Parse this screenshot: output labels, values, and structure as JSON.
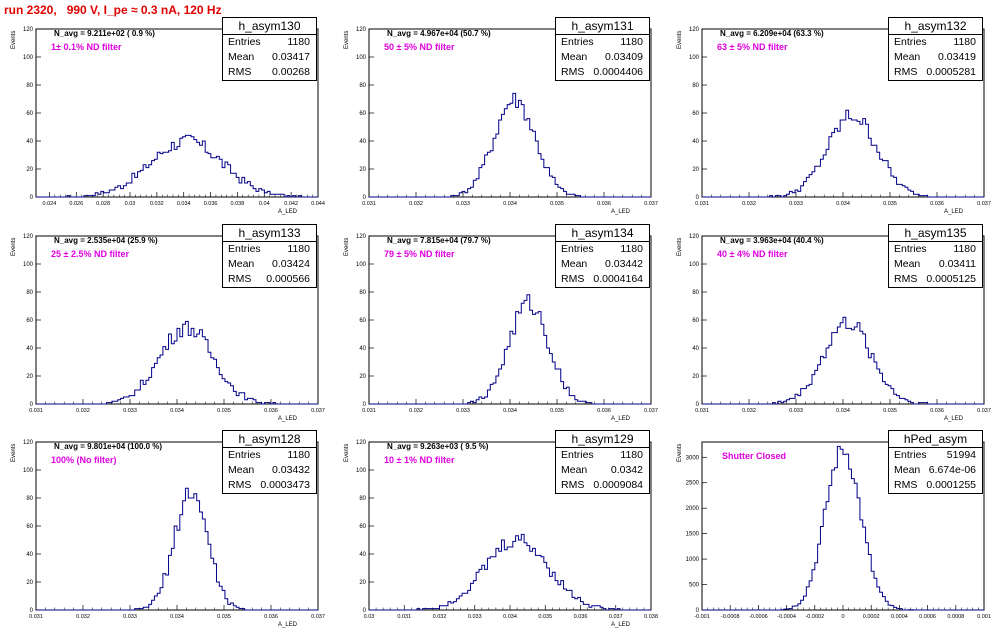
{
  "page_title": "run 2320,   990 V, I_pe ≈ 0.3 nA, 120 Hz",
  "colors": {
    "histogram": "#000088",
    "filter_text": "#e000e0",
    "title": "#e00000"
  },
  "chart_data": [
    {
      "type": "histogram",
      "name": "h_asym130",
      "stats": {
        "entries_label": "Entries",
        "entries": "1180",
        "mean_label": "Mean",
        "mean": "0.03417",
        "rms_label": "RMS",
        "rms": "0.00268"
      },
      "n_avg": "N_avg = 9.211e+02 ( 0.9 %)",
      "filter": "1± 0.1% ND filter",
      "xlim": [
        0.023,
        0.044
      ],
      "ylim": [
        0,
        120
      ],
      "xticks": [
        0.024,
        0.026,
        0.028,
        0.03,
        0.032,
        0.034,
        0.036,
        0.038,
        0.04,
        0.042,
        0.044
      ],
      "xtick_labels": [
        "0.024",
        "0.026",
        "0.028",
        "0.03",
        "0.032",
        "0.034",
        "0.036",
        "0.038",
        "0.04",
        "0.042",
        "0.044"
      ],
      "yticks": [
        0,
        20,
        40,
        60,
        80,
        100,
        120
      ],
      "ylabel": "Events",
      "xlabel": "A_LED",
      "peak_x": 0.0342,
      "peak_y": 40,
      "sigma": 0.0027
    },
    {
      "type": "histogram",
      "name": "h_asym131",
      "stats": {
        "entries_label": "Entries",
        "entries": "1180",
        "mean_label": "Mean",
        "mean": "0.03409",
        "rms_label": "RMS",
        "rms": "0.0004406"
      },
      "n_avg": "N_avg = 4.967e+04 (50.7 %)",
      "filter": "50 ± 5% ND filter",
      "xlim": [
        0.031,
        0.037
      ],
      "ylim": [
        0,
        120
      ],
      "xticks": [
        0.031,
        0.032,
        0.033,
        0.034,
        0.035,
        0.036,
        0.037
      ],
      "xtick_labels": [
        "0.031",
        "0.032",
        "0.033",
        "0.034",
        "0.035",
        "0.036",
        "0.037"
      ],
      "yticks": [
        0,
        20,
        40,
        60,
        80,
        100,
        120
      ],
      "ylabel": "Events",
      "xlabel": "A_LED",
      "peak_x": 0.0341,
      "peak_y": 70,
      "sigma": 0.00044
    },
    {
      "type": "histogram",
      "name": "h_asym132",
      "stats": {
        "entries_label": "Entries",
        "entries": "1180",
        "mean_label": "Mean",
        "mean": "0.03419",
        "rms_label": "RMS",
        "rms": "0.0005281"
      },
      "n_avg": "N_avg = 6.209e+04 (63.3 %)",
      "filter": "63 ± 5% ND filter",
      "xlim": [
        0.031,
        0.037
      ],
      "ylim": [
        0,
        120
      ],
      "xticks": [
        0.031,
        0.032,
        0.033,
        0.034,
        0.035,
        0.036,
        0.037
      ],
      "xtick_labels": [
        "0.031",
        "0.032",
        "0.033",
        "0.034",
        "0.035",
        "0.036",
        "0.037"
      ],
      "yticks": [
        0,
        20,
        40,
        60,
        80,
        100,
        120
      ],
      "ylabel": "Events",
      "xlabel": "A_LED",
      "peak_x": 0.0342,
      "peak_y": 58,
      "sigma": 0.00053
    },
    {
      "type": "histogram",
      "name": "h_asym133",
      "stats": {
        "entries_label": "Entries",
        "entries": "1180",
        "mean_label": "Mean",
        "mean": "0.03424",
        "rms_label": "RMS",
        "rms": "0.000566"
      },
      "n_avg": "N_avg = 2.535e+04 (25.9 %)",
      "filter": "25 ± 2.5% ND filter",
      "xlim": [
        0.031,
        0.037
      ],
      "ylim": [
        0,
        120
      ],
      "xticks": [
        0.031,
        0.032,
        0.033,
        0.034,
        0.035,
        0.036,
        0.037
      ],
      "xtick_labels": [
        "0.031",
        "0.032",
        "0.033",
        "0.034",
        "0.035",
        "0.036",
        "0.037"
      ],
      "yticks": [
        0,
        20,
        40,
        60,
        80,
        100,
        120
      ],
      "ylabel": "Events",
      "xlabel": "A_LED",
      "peak_x": 0.0342,
      "peak_y": 55,
      "sigma": 0.00057
    },
    {
      "type": "histogram",
      "name": "h_asym134",
      "stats": {
        "entries_label": "Entries",
        "entries": "1180",
        "mean_label": "Mean",
        "mean": "0.03442",
        "rms_label": "RMS",
        "rms": "0.0004164"
      },
      "n_avg": "N_avg = 7.815e+04 (79.7 %)",
      "filter": "79 ± 5% ND filter",
      "xlim": [
        0.031,
        0.037
      ],
      "ylim": [
        0,
        120
      ],
      "xticks": [
        0.031,
        0.032,
        0.033,
        0.034,
        0.035,
        0.036,
        0.037
      ],
      "xtick_labels": [
        "0.031",
        "0.032",
        "0.033",
        "0.034",
        "0.035",
        "0.036",
        "0.037"
      ],
      "yticks": [
        0,
        20,
        40,
        60,
        80,
        100,
        120
      ],
      "ylabel": "Events",
      "xlabel": "A_LED",
      "peak_x": 0.0344,
      "peak_y": 72,
      "sigma": 0.00042
    },
    {
      "type": "histogram",
      "name": "h_asym135",
      "stats": {
        "entries_label": "Entries",
        "entries": "1180",
        "mean_label": "Mean",
        "mean": "0.03411",
        "rms_label": "RMS",
        "rms": "0.0005125"
      },
      "n_avg": "N_avg = 3.963e+04 (40.4 %)",
      "filter": "40 ± 4% ND filter",
      "xlim": [
        0.031,
        0.037
      ],
      "ylim": [
        0,
        120
      ],
      "xticks": [
        0.031,
        0.032,
        0.033,
        0.034,
        0.035,
        0.036,
        0.037
      ],
      "xtick_labels": [
        "0.031",
        "0.032",
        "0.033",
        "0.034",
        "0.035",
        "0.036",
        "0.037"
      ],
      "yticks": [
        0,
        20,
        40,
        60,
        80,
        100,
        120
      ],
      "ylabel": "Events",
      "xlabel": "A_LED",
      "peak_x": 0.0341,
      "peak_y": 58,
      "sigma": 0.00051
    },
    {
      "type": "histogram",
      "name": "h_asym128",
      "stats": {
        "entries_label": "Entries",
        "entries": "1180",
        "mean_label": "Mean",
        "mean": "0.03432",
        "rms_label": "RMS",
        "rms": "0.0003473"
      },
      "n_avg": "N_avg = 9.801e+04 (100.0 %)",
      "filter": "100% (No filter)",
      "xlim": [
        0.031,
        0.037
      ],
      "ylim": [
        0,
        120
      ],
      "xticks": [
        0.031,
        0.032,
        0.033,
        0.034,
        0.035,
        0.036,
        0.037
      ],
      "xtick_labels": [
        "0.031",
        "0.032",
        "0.033",
        "0.034",
        "0.035",
        "0.036",
        "0.037"
      ],
      "yticks": [
        0,
        20,
        40,
        60,
        80,
        100,
        120
      ],
      "ylabel": "Events",
      "xlabel": "A_LED",
      "peak_x": 0.0343,
      "peak_y": 85,
      "sigma": 0.00035
    },
    {
      "type": "histogram",
      "name": "h_asym129",
      "stats": {
        "entries_label": "Entries",
        "entries": "1180",
        "mean_label": "Mean",
        "mean": "0.0342",
        "rms_label": "RMS",
        "rms": "0.0009084"
      },
      "n_avg": "N_avg = 9.263e+03 ( 9.5 %)",
      "filter": "10 ± 1% ND filter",
      "xlim": [
        0.03,
        0.038
      ],
      "ylim": [
        0,
        120
      ],
      "xticks": [
        0.03,
        0.031,
        0.032,
        0.033,
        0.034,
        0.035,
        0.036,
        0.037,
        0.038
      ],
      "xtick_labels": [
        "0.03",
        "0.031",
        "0.032",
        "0.033",
        "0.034",
        "0.035",
        "0.036",
        "0.037",
        "0.038"
      ],
      "yticks": [
        0,
        20,
        40,
        60,
        80,
        100,
        120
      ],
      "ylabel": "Events",
      "xlabel": "A_LED",
      "peak_x": 0.0342,
      "peak_y": 50,
      "sigma": 0.00091
    },
    {
      "type": "histogram",
      "name": "hPed_asym",
      "stats": {
        "entries_label": "Entries",
        "entries": "51994",
        "mean_label": "Mean",
        "mean": "6.674e-06",
        "rms_label": "RMS",
        "rms": "0.0001255"
      },
      "n_avg": "",
      "filter": "Shutter Closed",
      "xlim": [
        -0.001,
        0.001
      ],
      "ylim": [
        0,
        3300
      ],
      "xticks": [
        -0.001,
        -0.0008,
        -0.0006,
        -0.0004,
        -0.0002,
        0,
        0.0002,
        0.0004,
        0.0006,
        0.0008,
        0.001
      ],
      "xtick_labels": [
        "-0.001",
        "-0.0008",
        "-0.0006",
        "-0.0004",
        "-0.0002",
        "0",
        "0.0002",
        "0.0004",
        "0.0006",
        "0.0008",
        "0.001"
      ],
      "yticks": [
        0,
        500,
        1000,
        1500,
        2000,
        2500,
        3000
      ],
      "ylabel": "Events",
      "xlabel": "",
      "peak_x": 0.0,
      "peak_y": 3150,
      "sigma": 0.000126
    }
  ]
}
